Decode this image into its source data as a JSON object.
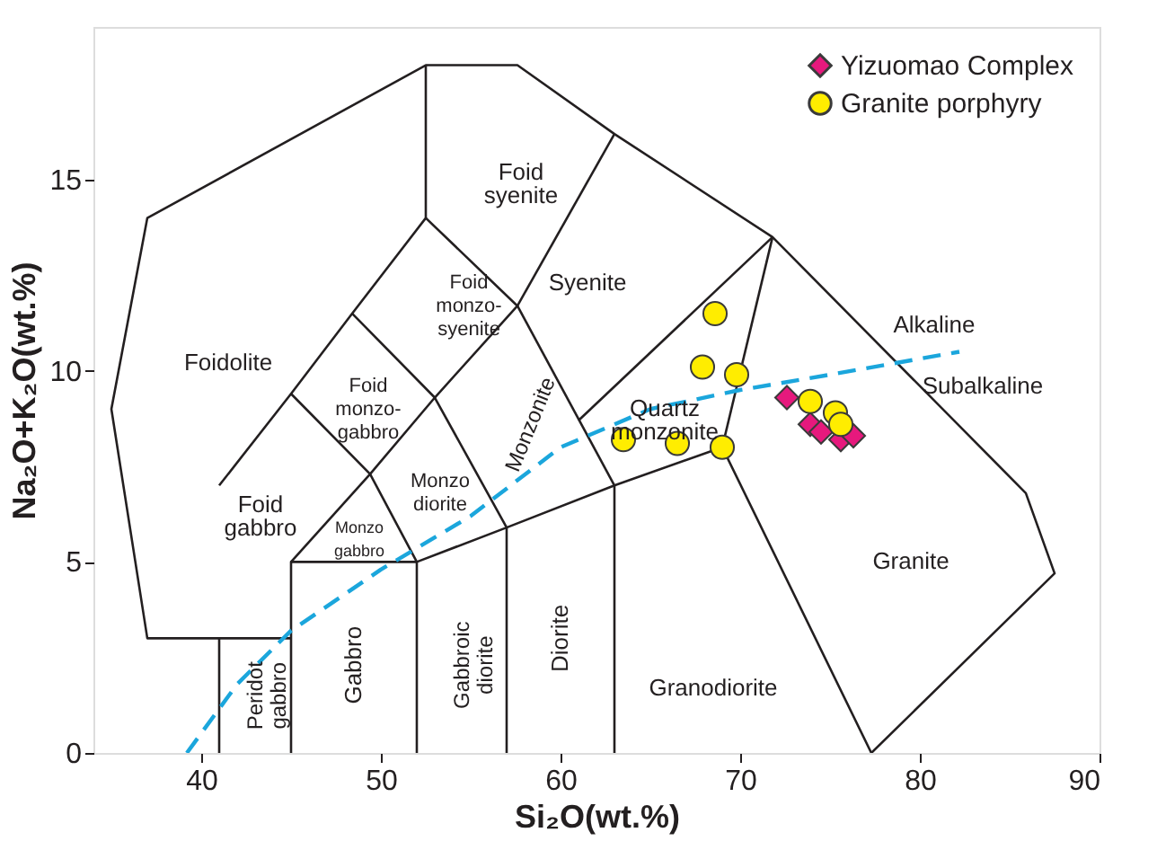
{
  "chart_data": {
    "type": "scatter",
    "xlabel": "Si₂O(wt.%)",
    "ylabel": "Na₂O+K₂O(wt.%)",
    "xlim": [
      34,
      90
    ],
    "ylim": [
      0,
      19
    ],
    "xticks": [
      40,
      50,
      60,
      70,
      80,
      90
    ],
    "yticks": [
      0,
      5,
      10,
      15
    ],
    "grid": false,
    "legend": "top right",
    "series": [
      {
        "type": "line",
        "color": "#231f20",
        "line_style": "solid",
        "marker": "none",
        "x": [
          41,
          41,
          37,
          35,
          37,
          52.5,
          57.6,
          63,
          71.8,
          85.9,
          87.5,
          77.3
        ],
        "values": [
          0,
          3,
          3,
          9,
          14,
          18,
          18,
          16.2,
          13.5,
          6.8,
          4.7,
          0
        ]
      },
      {
        "type": "line",
        "color": "#231f20",
        "line_style": "solid",
        "marker": "none",
        "x": [
          41,
          45
        ],
        "values": [
          3,
          3
        ]
      },
      {
        "type": "line",
        "color": "#231f20",
        "line_style": "solid",
        "marker": "none",
        "x": [
          45,
          45,
          52,
          57,
          63,
          69,
          77.3
        ],
        "values": [
          0,
          5,
          5,
          5.9,
          7,
          8,
          0
        ]
      },
      {
        "type": "line",
        "color": "#231f20",
        "line_style": "solid",
        "marker": "none",
        "x": [
          52,
          52
        ],
        "values": [
          0,
          5
        ]
      },
      {
        "type": "line",
        "color": "#231f20",
        "line_style": "solid",
        "marker": "none",
        "x": [
          57,
          57
        ],
        "values": [
          0,
          5.9
        ]
      },
      {
        "type": "line",
        "color": "#231f20",
        "line_style": "solid",
        "marker": "none",
        "x": [
          63,
          63
        ],
        "values": [
          0,
          7
        ]
      },
      {
        "type": "line",
        "color": "#231f20",
        "line_style": "solid",
        "marker": "none",
        "x": [
          69,
          71.8
        ],
        "values": [
          8,
          13.5
        ]
      },
      {
        "type": "line",
        "color": "#231f20",
        "line_style": "solid",
        "marker": "none",
        "x": [
          41,
          45,
          48.4,
          52.5,
          52.5
        ],
        "values": [
          7,
          9.4,
          11.5,
          14,
          18
        ]
      },
      {
        "type": "line",
        "color": "#231f20",
        "line_style": "solid",
        "marker": "none",
        "x": [
          45,
          49.4,
          52
        ],
        "values": [
          5,
          7.3,
          5
        ]
      },
      {
        "type": "line",
        "color": "#231f20",
        "line_style": "solid",
        "marker": "none",
        "x": [
          45,
          49.4,
          53,
          57
        ],
        "values": [
          9.4,
          7.3,
          9.3,
          5.9
        ]
      },
      {
        "type": "line",
        "color": "#231f20",
        "line_style": "solid",
        "marker": "none",
        "x": [
          48.4,
          53,
          57.6,
          52.5
        ],
        "values": [
          11.5,
          9.3,
          11.7,
          14
        ]
      },
      {
        "type": "line",
        "color": "#231f20",
        "line_style": "solid",
        "marker": "none",
        "x": [
          57.6,
          63
        ],
        "values": [
          11.7,
          7
        ]
      },
      {
        "type": "line",
        "color": "#231f20",
        "line_style": "solid",
        "marker": "none",
        "x": [
          57.6,
          63
        ],
        "values": [
          11.7,
          16.2
        ]
      },
      {
        "type": "line",
        "color": "#231f20",
        "line_style": "solid",
        "marker": "none",
        "x": [
          61,
          71.8
        ],
        "values": [
          8.7,
          13.5
        ]
      },
      {
        "type": "line",
        "color": "#1ba6dc",
        "line_style": "dashed",
        "marker": "none",
        "x": [
          39.2,
          42,
          45,
          50,
          55,
          60,
          65,
          70,
          75,
          82.2
        ],
        "values": [
          0,
          1.8,
          3.2,
          4.8,
          6.2,
          8.0,
          9.0,
          9.5,
          9.9,
          10.5
        ]
      },
      {
        "name": "Yizuomao Complex",
        "color": "#e6197d",
        "marker": "diamond",
        "x": [
          72.6,
          73.9,
          74.5,
          75.6,
          76.3
        ],
        "values": [
          9.3,
          8.6,
          8.4,
          8.2,
          8.3
        ]
      },
      {
        "name": "Granite porphyry",
        "color": "#ffed00",
        "marker": "circle",
        "x": [
          68.6,
          67.9,
          69.8,
          63.5,
          66.5,
          69.0,
          73.9,
          75.3,
          75.6
        ],
        "values": [
          11.5,
          10.1,
          9.9,
          8.2,
          8.1,
          8.0,
          9.2,
          8.9,
          8.6
        ]
      }
    ],
    "annotations": [
      "Foidolite",
      "Foid syenite",
      "Foid monzo-syenite",
      "Foid monzo-gabbro",
      "Foid gabbro",
      "Syenite",
      "Monzonite",
      "Monzo diorite",
      "Monzo gabbro",
      "Quartz monzonite",
      "Peridot gabbro",
      "Gabbro",
      "Gabbroic diorite",
      "Diorite",
      "Granodiorite",
      "Granite",
      "Alkaline",
      "Subalkaline"
    ]
  }
}
